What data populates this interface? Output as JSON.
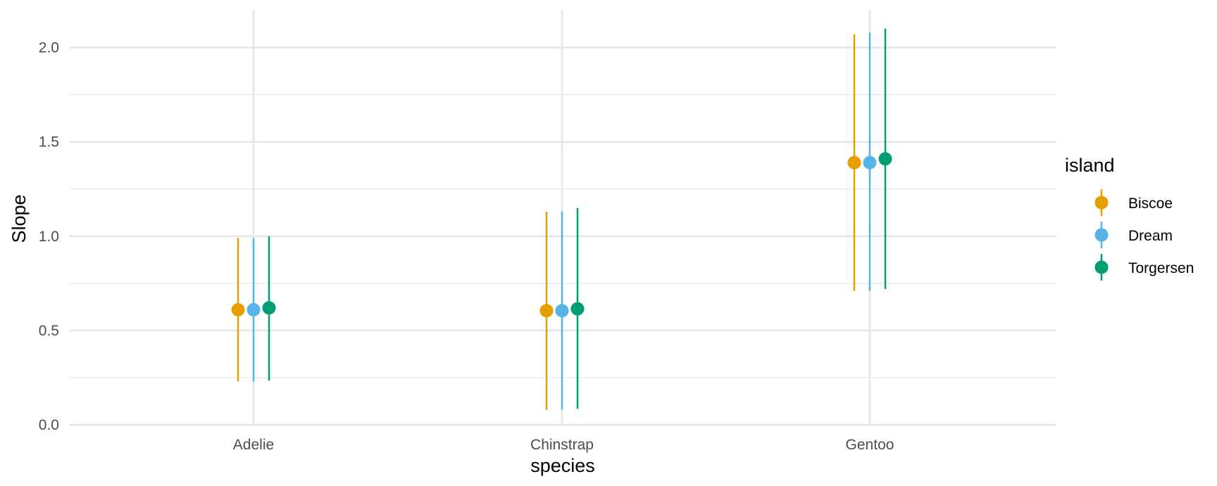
{
  "chart_data": {
    "type": "scatter",
    "subtype": "pointrange-dodged",
    "xlabel": "species",
    "ylabel": "Slope",
    "categories": [
      "Adelie",
      "Chinstrap",
      "Gentoo"
    ],
    "ylim": [
      0,
      2.2
    ],
    "yticks": [
      0.0,
      0.5,
      1.0,
      1.5,
      2.0
    ],
    "ytick_labels": [
      "0.0",
      "0.5",
      "1.0",
      "1.5",
      "2.0"
    ],
    "grid": true,
    "legend": {
      "title": "island",
      "position": "right"
    },
    "series": [
      {
        "name": "Biscoe",
        "color": "#E69F00",
        "values": [
          0.61,
          0.605,
          1.39
        ],
        "lower": [
          0.23,
          0.08,
          0.71
        ],
        "upper": [
          0.99,
          1.13,
          2.07
        ]
      },
      {
        "name": "Dream",
        "color": "#56B4E9",
        "values": [
          0.61,
          0.605,
          1.39
        ],
        "lower": [
          0.23,
          0.08,
          0.71
        ],
        "upper": [
          0.99,
          1.13,
          2.08
        ]
      },
      {
        "name": "Torgersen",
        "color": "#009E73",
        "values": [
          0.62,
          0.615,
          1.41
        ],
        "lower": [
          0.235,
          0.085,
          0.72
        ],
        "upper": [
          1.0,
          1.15,
          2.1
        ]
      }
    ]
  }
}
